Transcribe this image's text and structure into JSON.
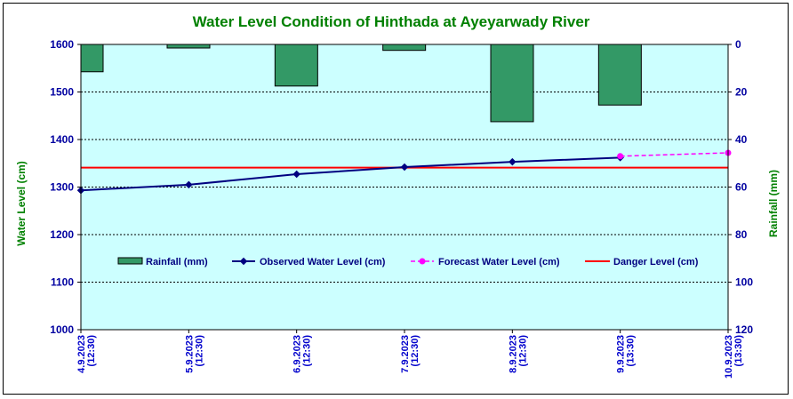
{
  "chart_data": {
    "type": "bar+line",
    "title": "Water Level Condition of Hinthada at Ayeyarwady River",
    "ylabel_left": "Water Level (cm)",
    "ylabel_right": "Rainfall (mm)",
    "ylim_left": [
      1000,
      1600
    ],
    "yticks_left": [
      "1600",
      "1500",
      "1400",
      "1300",
      "1200",
      "1100",
      "1000"
    ],
    "ylim_right": [
      0,
      120
    ],
    "right_axis_inverted": true,
    "yticks_right": [
      "0",
      "20",
      "40",
      "60",
      "80",
      "100",
      "120"
    ],
    "x_labels": [
      [
        "4.9.2023",
        "(12:30)"
      ],
      [
        "5.9.2023",
        "(12:30)"
      ],
      [
        "6.9.2023",
        "(12:30)"
      ],
      [
        "7.9.2023",
        "(12:30)"
      ],
      [
        "8.9.2023",
        "(12:30)"
      ],
      [
        "9.9.2023",
        "(13:30)"
      ],
      [
        "10.9.2023",
        "(13:30)"
      ]
    ],
    "grid": "horizontal dashed",
    "background": "#ccffff",
    "series": [
      {
        "name": "Rainfall (mm)",
        "kind": "bar",
        "axis": "right",
        "color": "#339966",
        "values": [
          11.5,
          1.5,
          17.5,
          2.5,
          32.5,
          25.5
        ]
      },
      {
        "name": "Observed Water Level (cm)",
        "kind": "line",
        "axis": "left",
        "color": "#000080",
        "values": [
          1293,
          1305,
          1327,
          1342,
          1353,
          1362
        ]
      },
      {
        "name": "Forecast Water Level (cm)",
        "kind": "dashed-line",
        "axis": "left",
        "color": "#ff00ff",
        "points": [
          [
            5,
            1365
          ],
          [
            6,
            1372
          ]
        ]
      },
      {
        "name": "Danger Level (cm)",
        "kind": "hline",
        "axis": "left",
        "color": "#ff0000",
        "value": 1341
      }
    ],
    "legend_placement": "bottom-inside"
  }
}
